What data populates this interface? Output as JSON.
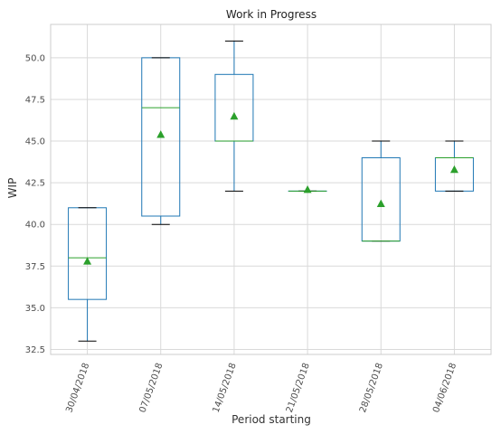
{
  "chart_data": {
    "type": "box",
    "title": "Work in Progress",
    "xlabel": "Period starting",
    "ylabel": "WIP",
    "ylim": [
      32.2,
      52.0
    ],
    "yticks": [
      32.5,
      35.0,
      37.5,
      40.0,
      42.5,
      45.0,
      47.5,
      50.0
    ],
    "ytick_labels": [
      "32.5",
      "35.0",
      "37.5",
      "40.0",
      "42.5",
      "45.0",
      "47.5",
      "50.0"
    ],
    "grid": true,
    "categories": [
      "30/04/2018",
      "07/05/2018",
      "14/05/2018",
      "21/05/2018",
      "28/05/2018",
      "04/06/2018"
    ],
    "boxes": [
      {
        "whislo": 33.0,
        "q1": 35.5,
        "median": 38.0,
        "q3": 41.0,
        "whishi": 41.0,
        "mean": 37.8
      },
      {
        "whislo": 40.0,
        "q1": 40.5,
        "median": 47.0,
        "q3": 50.0,
        "whishi": 50.0,
        "mean": 45.4
      },
      {
        "whislo": 42.0,
        "q1": 45.0,
        "median": 45.0,
        "q3": 49.0,
        "whishi": 51.0,
        "mean": 46.5
      },
      {
        "whislo": 42.0,
        "q1": 42.0,
        "median": 42.0,
        "q3": 42.0,
        "whishi": 42.0,
        "mean": 42.1
      },
      {
        "whislo": 39.0,
        "q1": 39.0,
        "median": 39.0,
        "q3": 44.0,
        "whishi": 45.0,
        "mean": 41.25
      },
      {
        "whislo": 42.0,
        "q1": 42.0,
        "median": 44.0,
        "q3": 44.0,
        "whishi": 45.0,
        "mean": 43.3
      }
    ],
    "colors": {
      "box": "#1f77b4",
      "whisker": "#1f77b4",
      "cap": "#000000",
      "median": "#2ca02c",
      "mean": "#2ca02c",
      "grid": "#d9d9d9",
      "axes": "#cccccc"
    }
  }
}
